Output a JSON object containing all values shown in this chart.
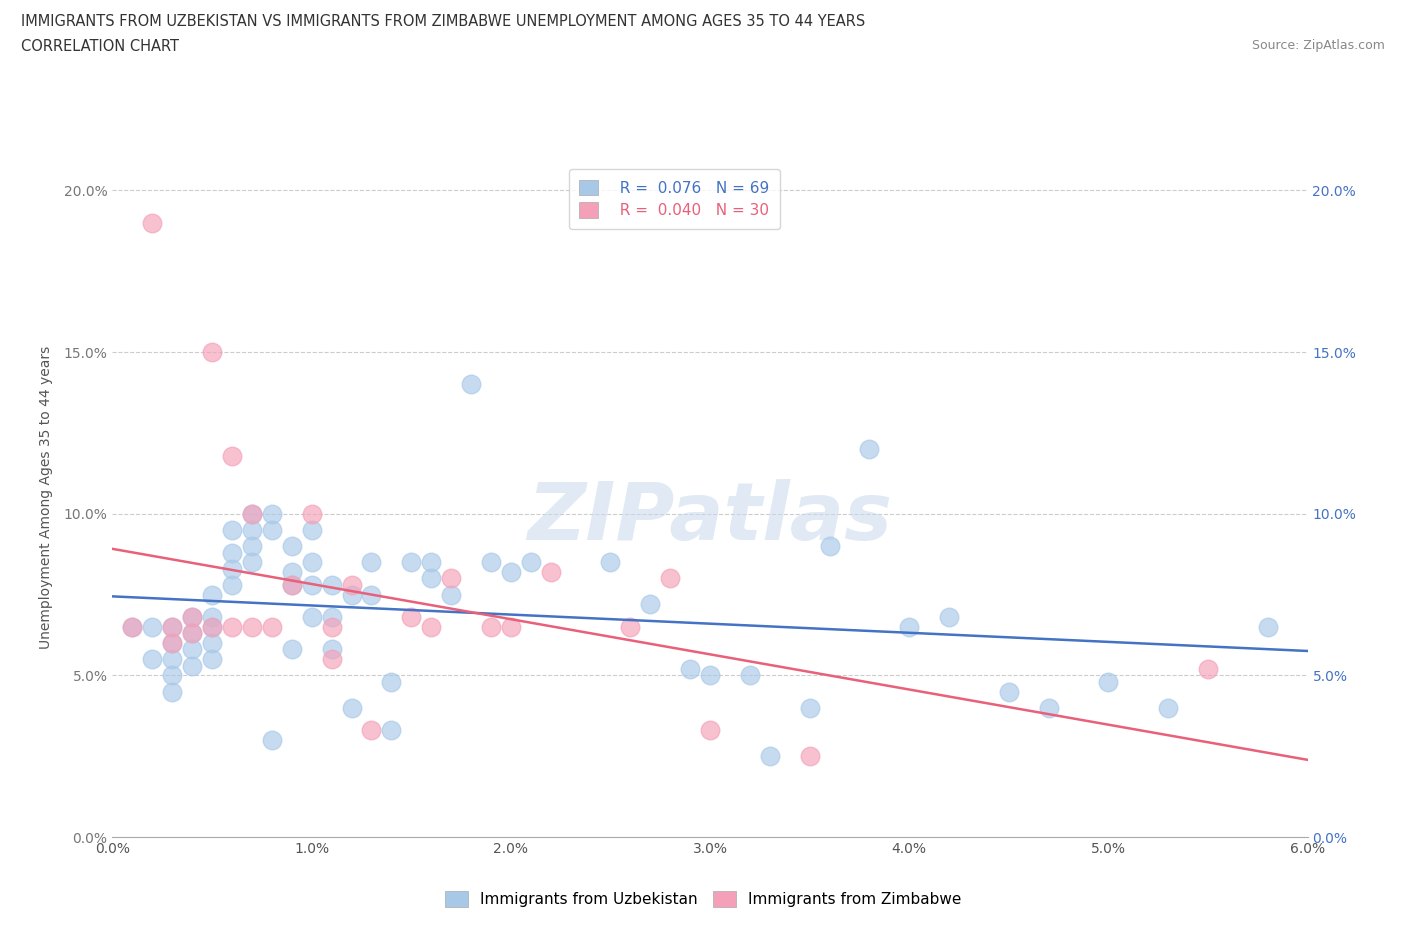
{
  "title_line1": "IMMIGRANTS FROM UZBEKISTAN VS IMMIGRANTS FROM ZIMBABWE UNEMPLOYMENT AMONG AGES 35 TO 44 YEARS",
  "title_line2": "CORRELATION CHART",
  "source_text": "Source: ZipAtlas.com",
  "ylabel": "Unemployment Among Ages 35 to 44 years",
  "xlim": [
    0.0,
    0.06
  ],
  "ylim": [
    0.0,
    0.21
  ],
  "xticks": [
    0.0,
    0.01,
    0.02,
    0.03,
    0.04,
    0.05,
    0.06
  ],
  "xticklabels": [
    "0.0%",
    "1.0%",
    "2.0%",
    "3.0%",
    "4.0%",
    "5.0%",
    "6.0%"
  ],
  "yticks": [
    0.0,
    0.05,
    0.1,
    0.15,
    0.2
  ],
  "yticklabels": [
    "0.0%",
    "5.0%",
    "10.0%",
    "15.0%",
    "20.0%"
  ],
  "uzbekistan_color": "#a8c8e8",
  "zimbabwe_color": "#f4a0b8",
  "uzbekistan_R": 0.076,
  "uzbekistan_N": 69,
  "zimbabwe_R": 0.04,
  "zimbabwe_N": 30,
  "uzbekistan_x": [
    0.001,
    0.002,
    0.002,
    0.003,
    0.003,
    0.003,
    0.003,
    0.003,
    0.004,
    0.004,
    0.004,
    0.004,
    0.005,
    0.005,
    0.005,
    0.005,
    0.005,
    0.006,
    0.006,
    0.006,
    0.006,
    0.007,
    0.007,
    0.007,
    0.007,
    0.008,
    0.008,
    0.008,
    0.009,
    0.009,
    0.009,
    0.009,
    0.01,
    0.01,
    0.01,
    0.01,
    0.011,
    0.011,
    0.011,
    0.012,
    0.012,
    0.013,
    0.013,
    0.014,
    0.014,
    0.015,
    0.016,
    0.016,
    0.017,
    0.018,
    0.019,
    0.02,
    0.021,
    0.025,
    0.027,
    0.029,
    0.03,
    0.032,
    0.033,
    0.035,
    0.036,
    0.038,
    0.04,
    0.042,
    0.045,
    0.047,
    0.05,
    0.053,
    0.058
  ],
  "uzbekistan_y": [
    0.065,
    0.065,
    0.055,
    0.065,
    0.06,
    0.055,
    0.05,
    0.045,
    0.068,
    0.063,
    0.058,
    0.053,
    0.075,
    0.068,
    0.065,
    0.06,
    0.055,
    0.095,
    0.088,
    0.083,
    0.078,
    0.1,
    0.095,
    0.09,
    0.085,
    0.1,
    0.095,
    0.03,
    0.09,
    0.082,
    0.078,
    0.058,
    0.095,
    0.085,
    0.078,
    0.068,
    0.078,
    0.068,
    0.058,
    0.075,
    0.04,
    0.085,
    0.075,
    0.048,
    0.033,
    0.085,
    0.085,
    0.08,
    0.075,
    0.14,
    0.085,
    0.082,
    0.085,
    0.085,
    0.072,
    0.052,
    0.05,
    0.05,
    0.025,
    0.04,
    0.09,
    0.12,
    0.065,
    0.068,
    0.045,
    0.04,
    0.048,
    0.04,
    0.065
  ],
  "zimbabwe_x": [
    0.001,
    0.002,
    0.003,
    0.003,
    0.004,
    0.004,
    0.005,
    0.005,
    0.006,
    0.006,
    0.007,
    0.007,
    0.008,
    0.009,
    0.01,
    0.011,
    0.011,
    0.012,
    0.013,
    0.015,
    0.016,
    0.017,
    0.019,
    0.02,
    0.022,
    0.026,
    0.028,
    0.03,
    0.035,
    0.055
  ],
  "zimbabwe_y": [
    0.065,
    0.19,
    0.065,
    0.06,
    0.068,
    0.063,
    0.15,
    0.065,
    0.118,
    0.065,
    0.1,
    0.065,
    0.065,
    0.078,
    0.1,
    0.065,
    0.055,
    0.078,
    0.033,
    0.068,
    0.065,
    0.08,
    0.065,
    0.065,
    0.082,
    0.065,
    0.08,
    0.033,
    0.025,
    0.052
  ],
  "watermark": "ZIPatlas",
  "trendline_uzbek_color": "#4472c4",
  "trendline_zimbabwe_color": "#e8607a",
  "background_color": "#ffffff",
  "grid_color": "#cccccc"
}
